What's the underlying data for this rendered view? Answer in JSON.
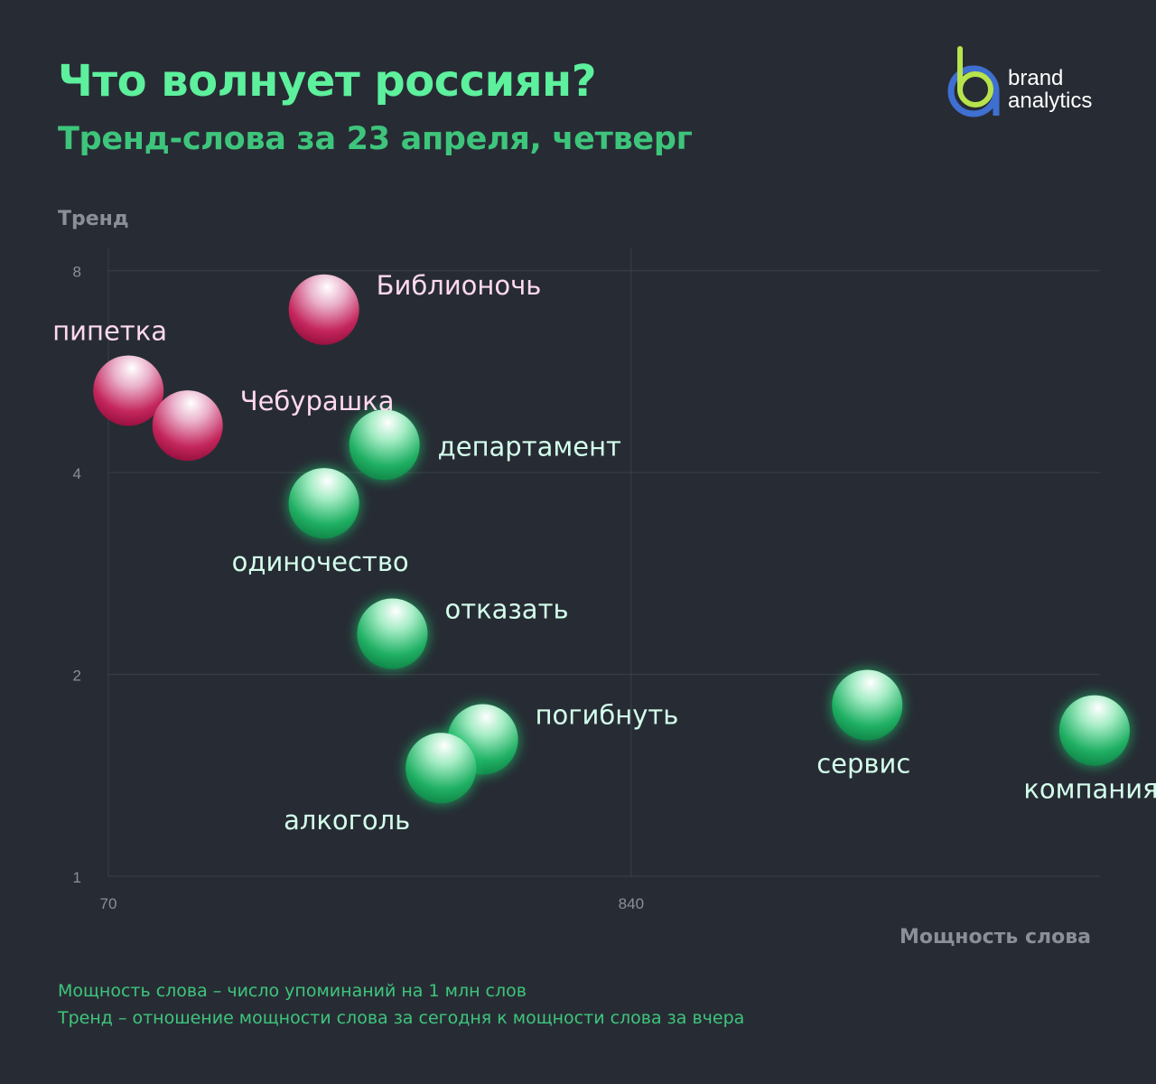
{
  "header": {
    "title": "Что волнует россиян?",
    "subtitle": "Тренд-слова за 23 апреля, четверг"
  },
  "logo": {
    "line1": "brand",
    "line2": "analytics"
  },
  "chart_data": {
    "type": "scatter",
    "xlabel": "Мощность слова",
    "ylabel": "Тренд",
    "x_scale": "log",
    "y_scale": "log",
    "xlim": [
      70,
      7800
    ],
    "ylim": [
      1,
      8.4
    ],
    "x_ticks": [
      70,
      840
    ],
    "y_ticks": [
      1,
      2,
      4,
      8
    ],
    "grid": true,
    "colors": {
      "rising": "#c7184f",
      "normal": "#1fb566",
      "label_rising": "#ffd9f0",
      "label_normal": "#d4ffec",
      "axis_text": "#8a8f98",
      "grid": "#3b4048"
    },
    "points": [
      {
        "label": "Библионочь",
        "x": 195,
        "y": 7.0,
        "category": "rising",
        "label_pos": "top-right"
      },
      {
        "label": "пипетка",
        "x": 77,
        "y": 5.3,
        "category": "rising",
        "label_pos": "top-left"
      },
      {
        "label": "Чебурашка",
        "x": 102,
        "y": 4.7,
        "category": "rising",
        "label_pos": "top-right"
      },
      {
        "label": "департамент",
        "x": 260,
        "y": 4.4,
        "category": "normal",
        "label_pos": "right"
      },
      {
        "label": "одиночество",
        "x": 195,
        "y": 3.6,
        "category": "normal",
        "label_pos": "bottom"
      },
      {
        "label": "отказать",
        "x": 270,
        "y": 2.3,
        "category": "normal",
        "label_pos": "top-right"
      },
      {
        "label": "погибнуть",
        "x": 415,
        "y": 1.6,
        "category": "normal",
        "label_pos": "top-right"
      },
      {
        "label": "алкоголь",
        "x": 340,
        "y": 1.45,
        "category": "normal",
        "label_pos": "bottom-left"
      },
      {
        "label": "сервис",
        "x": 2580,
        "y": 1.8,
        "category": "normal",
        "label_pos": "bottom"
      },
      {
        "label": "компания",
        "x": 7600,
        "y": 1.65,
        "category": "normal",
        "label_pos": "bottom"
      }
    ]
  },
  "footnotes": {
    "line1": "Мощность слова – число упоминаний на 1 млн слов",
    "line2": "Тренд – отношение мощности слова  за сегодня к мощности слова за вчера"
  }
}
